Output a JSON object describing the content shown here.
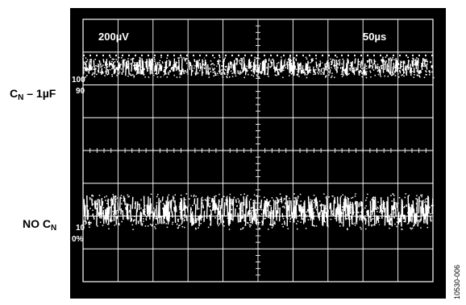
{
  "chart_data": {
    "type": "line",
    "title": "",
    "grid": true,
    "scale_labels": {
      "vertical": "200µV",
      "horizontal": "50µs"
    },
    "divisions": {
      "x": 10,
      "y": 8
    },
    "screen_markers": {
      "top_reference": "100",
      "upper_reference": "90",
      "lower_reference": "10",
      "bottom_reference": "0%"
    },
    "series": [
      {
        "name": "C_N – 1µF",
        "label_main": "C",
        "label_sub": "N",
        "label_rest": " – 1µF",
        "level_div": 1.45,
        "peak_to_peak_div": 0.55
      },
      {
        "name": "NO C_N",
        "label_main": "NO C",
        "label_sub": "N",
        "label_rest": "",
        "level_div": 5.85,
        "peak_to_peak_div": 0.95
      }
    ]
  },
  "figure_id": "10530-006"
}
